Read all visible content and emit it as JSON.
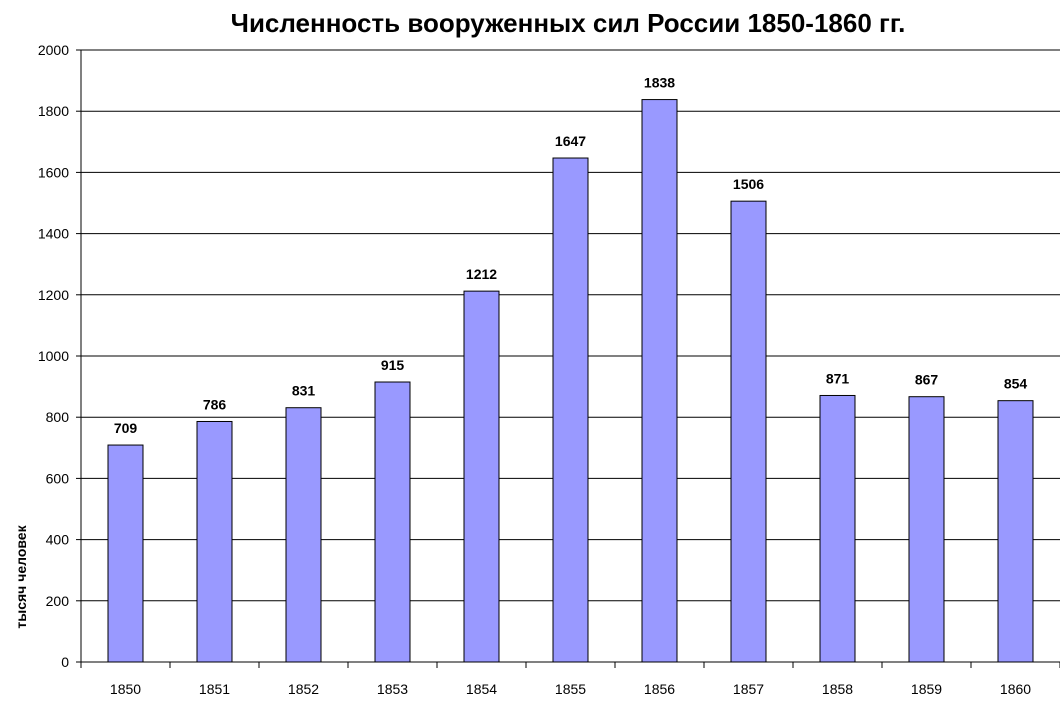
{
  "chart_data": {
    "type": "bar",
    "title": "Численность вооруженных сил России 1850-1860 гг.",
    "xlabel": "",
    "ylabel": "тысяч человек",
    "categories": [
      "1850",
      "1851",
      "1852",
      "1853",
      "1854",
      "1855",
      "1856",
      "1857",
      "1858",
      "1859",
      "1860"
    ],
    "values": [
      709,
      786,
      831,
      915,
      1212,
      1647,
      1838,
      1506,
      871,
      867,
      854
    ],
    "ylim": [
      0,
      2000
    ],
    "yticks": [
      0,
      200,
      400,
      600,
      800,
      1000,
      1200,
      1400,
      1600,
      1800,
      2000
    ],
    "grid": true,
    "data_labels": true,
    "bar_color": "#9999ff",
    "bar_edge_color": "#000000"
  }
}
